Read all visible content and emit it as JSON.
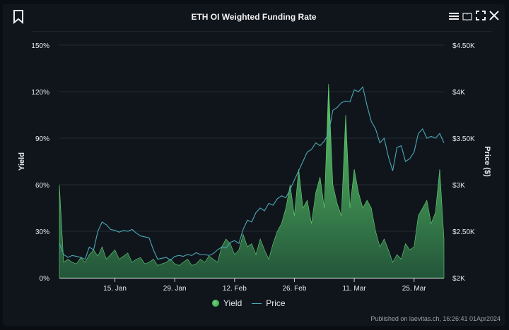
{
  "header": {
    "title": "ETH OI Weighted Funding Rate",
    "icons": [
      "bookmark-icon",
      "menu-icon",
      "book-icon",
      "fullscreen-icon",
      "close-icon"
    ]
  },
  "legend": {
    "yield": "Yield",
    "price": "Price"
  },
  "footer": {
    "published": "Published on laevitas.ch, 16:26:41 01Apr2024"
  },
  "chart_data": {
    "type": "area+line",
    "title": "ETH OI Weighted Funding Rate",
    "ylabel": "Yield",
    "y2label": "Price ($)",
    "ylim": [
      0,
      150
    ],
    "y2lim": [
      2000,
      4500
    ],
    "yticks": [
      "0%",
      "30%",
      "60%",
      "90%",
      "120%",
      "150%"
    ],
    "y2ticks": [
      "$2K",
      "$2.50K",
      "$3K",
      "$3.50K",
      "$4K",
      "$4.50K"
    ],
    "xticks": [
      "15. Jan",
      "29. Jan",
      "12. Feb",
      "26. Feb",
      "11. Mar",
      "25. Mar"
    ],
    "xrange": [
      "2024-01-02",
      "2024-04-01"
    ],
    "grid": true,
    "legend_position": "bottom",
    "colors": {
      "yield": "#4caf5a",
      "price": "#4aa8b4"
    },
    "series": [
      {
        "name": "Yield",
        "unit": "%",
        "start": "2024-01-02",
        "interval": "1d",
        "values": [
          60,
          10,
          12,
          10,
          9,
          13,
          10,
          15,
          18,
          14,
          20,
          12,
          15,
          18,
          12,
          14,
          16,
          10,
          12,
          13,
          9,
          10,
          12,
          8,
          9,
          10,
          12,
          9,
          8,
          10,
          12,
          8,
          9,
          12,
          10,
          14,
          12,
          10,
          20,
          25,
          22,
          15,
          18,
          28,
          20,
          22,
          15,
          25,
          18,
          12,
          22,
          30,
          35,
          45,
          60,
          40,
          70,
          45,
          50,
          35,
          55,
          65,
          45,
          125,
          60,
          48,
          40,
          105,
          45,
          70,
          55,
          45,
          50,
          45,
          30,
          20,
          25,
          18,
          10,
          15,
          12,
          22,
          18,
          20,
          40,
          45,
          50,
          35,
          42,
          70,
          25
        ]
      },
      {
        "name": "Price",
        "unit": "$",
        "start": "2024-01-02",
        "interval": "1d",
        "values": [
          2370,
          2250,
          2220,
          2240,
          2230,
          2220,
          2200,
          2330,
          2300,
          2500,
          2600,
          2570,
          2520,
          2510,
          2490,
          2510,
          2500,
          2520,
          2480,
          2450,
          2440,
          2430,
          2300,
          2200,
          2210,
          2220,
          2190,
          2230,
          2240,
          2230,
          2250,
          2240,
          2270,
          2250,
          2250,
          2240,
          2260,
          2300,
          2330,
          2320,
          2380,
          2400,
          2370,
          2520,
          2620,
          2600,
          2700,
          2750,
          2720,
          2800,
          2780,
          2850,
          2880,
          2860,
          2950,
          3050,
          3150,
          3250,
          3350,
          3380,
          3450,
          3420,
          3470,
          3550,
          3800,
          3830,
          3880,
          3900,
          3890,
          4020,
          4000,
          4050,
          3850,
          3680,
          3600,
          3450,
          3500,
          3300,
          3150,
          3400,
          3420,
          3250,
          3280,
          3350,
          3550,
          3600,
          3500,
          3520,
          3500,
          3550,
          3450
        ]
      }
    ]
  }
}
